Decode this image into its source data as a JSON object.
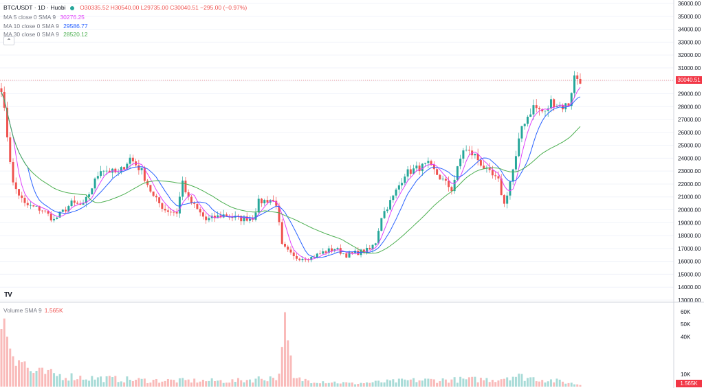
{
  "header": {
    "symbol": "BTC/USDT · 1D · Huobi",
    "ohlc": "O30335.52 H30540.00 L29735.00 C30040.51 −295.00 (−0.97%)"
  },
  "indicators": [
    {
      "label": "MA 5 close 0 SMA 9",
      "value": "30276.25",
      "color": "#e040fb"
    },
    {
      "label": "MA 10 close 0 SMA 9",
      "value": "29586.77",
      "color": "#2962ff"
    },
    {
      "label": "MA 30 close 0 SMA 9",
      "value": "28520.12",
      "color": "#4caf50"
    }
  ],
  "collapse_icon": "chevron-up-icon",
  "volume": {
    "label": "Volume SMA 9",
    "value": "1.565K"
  },
  "price_axis": {
    "ticks": [
      "36000.00",
      "35000.00",
      "34000.00",
      "33000.00",
      "32000.00",
      "31000.00",
      "30000.00",
      "29000.00",
      "28000.00",
      "27000.00",
      "26000.00",
      "25000.00",
      "24000.00",
      "23000.00",
      "22000.00",
      "21000.00",
      "20000.00",
      "19000.00",
      "18000.00",
      "17000.00",
      "16000.00",
      "15000.00",
      "14000.00",
      "13000.00"
    ],
    "last_price": "30040.51"
  },
  "volume_axis": {
    "ticks": [
      "60K",
      "50K",
      "40K",
      "10K"
    ],
    "last_volume": "1.565K"
  },
  "logo": "TV",
  "colors": {
    "up": "#26a69a",
    "down": "#ef5350",
    "grid": "#d1d4dc"
  },
  "chart_data": {
    "type": "candlestick",
    "price_range": [
      13000,
      36000
    ],
    "volume_range": [
      0,
      60000
    ],
    "anchors": [
      {
        "i": 0,
        "p": 29500
      },
      {
        "i": 4,
        "p": 22000
      },
      {
        "i": 8,
        "p": 20400
      },
      {
        "i": 14,
        "p": 20000
      },
      {
        "i": 18,
        "p": 19200
      },
      {
        "i": 24,
        "p": 20500
      },
      {
        "i": 28,
        "p": 20300
      },
      {
        "i": 34,
        "p": 23200
      },
      {
        "i": 40,
        "p": 22800
      },
      {
        "i": 44,
        "p": 24000
      },
      {
        "i": 48,
        "p": 23000
      },
      {
        "i": 52,
        "p": 21000
      },
      {
        "i": 56,
        "p": 20000
      },
      {
        "i": 60,
        "p": 19800
      },
      {
        "i": 62,
        "p": 22200
      },
      {
        "i": 64,
        "p": 20800
      },
      {
        "i": 70,
        "p": 19200
      },
      {
        "i": 76,
        "p": 19600
      },
      {
        "i": 82,
        "p": 19300
      },
      {
        "i": 86,
        "p": 19400
      },
      {
        "i": 88,
        "p": 20600
      },
      {
        "i": 92,
        "p": 20800
      },
      {
        "i": 94,
        "p": 20500
      },
      {
        "i": 96,
        "p": 17200
      },
      {
        "i": 100,
        "p": 16300
      },
      {
        "i": 106,
        "p": 16300
      },
      {
        "i": 110,
        "p": 16700
      },
      {
        "i": 114,
        "p": 17000
      },
      {
        "i": 118,
        "p": 16500
      },
      {
        "i": 122,
        "p": 16700
      },
      {
        "i": 126,
        "p": 16900
      },
      {
        "i": 128,
        "p": 17500
      },
      {
        "i": 130,
        "p": 19500
      },
      {
        "i": 134,
        "p": 21000
      },
      {
        "i": 138,
        "p": 22800
      },
      {
        "i": 142,
        "p": 23200
      },
      {
        "i": 146,
        "p": 23500
      },
      {
        "i": 150,
        "p": 22500
      },
      {
        "i": 154,
        "p": 21600
      },
      {
        "i": 158,
        "p": 24700
      },
      {
        "i": 162,
        "p": 24200
      },
      {
        "i": 166,
        "p": 23000
      },
      {
        "i": 170,
        "p": 22200
      },
      {
        "i": 172,
        "p": 20400
      },
      {
        "i": 176,
        "p": 24000
      },
      {
        "i": 178,
        "p": 26500
      },
      {
        "i": 182,
        "p": 28000
      },
      {
        "i": 186,
        "p": 27500
      },
      {
        "i": 188,
        "p": 28400
      },
      {
        "i": 192,
        "p": 28000
      },
      {
        "i": 194,
        "p": 28200
      },
      {
        "i": 196,
        "p": 30300
      },
      {
        "i": 198,
        "p": 30100
      }
    ],
    "volume_shape": [
      {
        "i": 0,
        "v": 56000
      },
      {
        "i": 4,
        "v": 30000
      },
      {
        "i": 10,
        "v": 12000
      },
      {
        "i": 20,
        "v": 9000
      },
      {
        "i": 30,
        "v": 7000
      },
      {
        "i": 50,
        "v": 5000
      },
      {
        "i": 80,
        "v": 4500
      },
      {
        "i": 95,
        "v": 8000
      },
      {
        "i": 96,
        "v": 56000
      },
      {
        "i": 100,
        "v": 6000
      },
      {
        "i": 120,
        "v": 2500
      },
      {
        "i": 140,
        "v": 5000
      },
      {
        "i": 170,
        "v": 6000
      },
      {
        "i": 174,
        "v": 9000
      },
      {
        "i": 190,
        "v": 4500
      },
      {
        "i": 198,
        "v": 1565
      }
    ],
    "ma_periods": [
      5,
      10,
      30
    ]
  }
}
